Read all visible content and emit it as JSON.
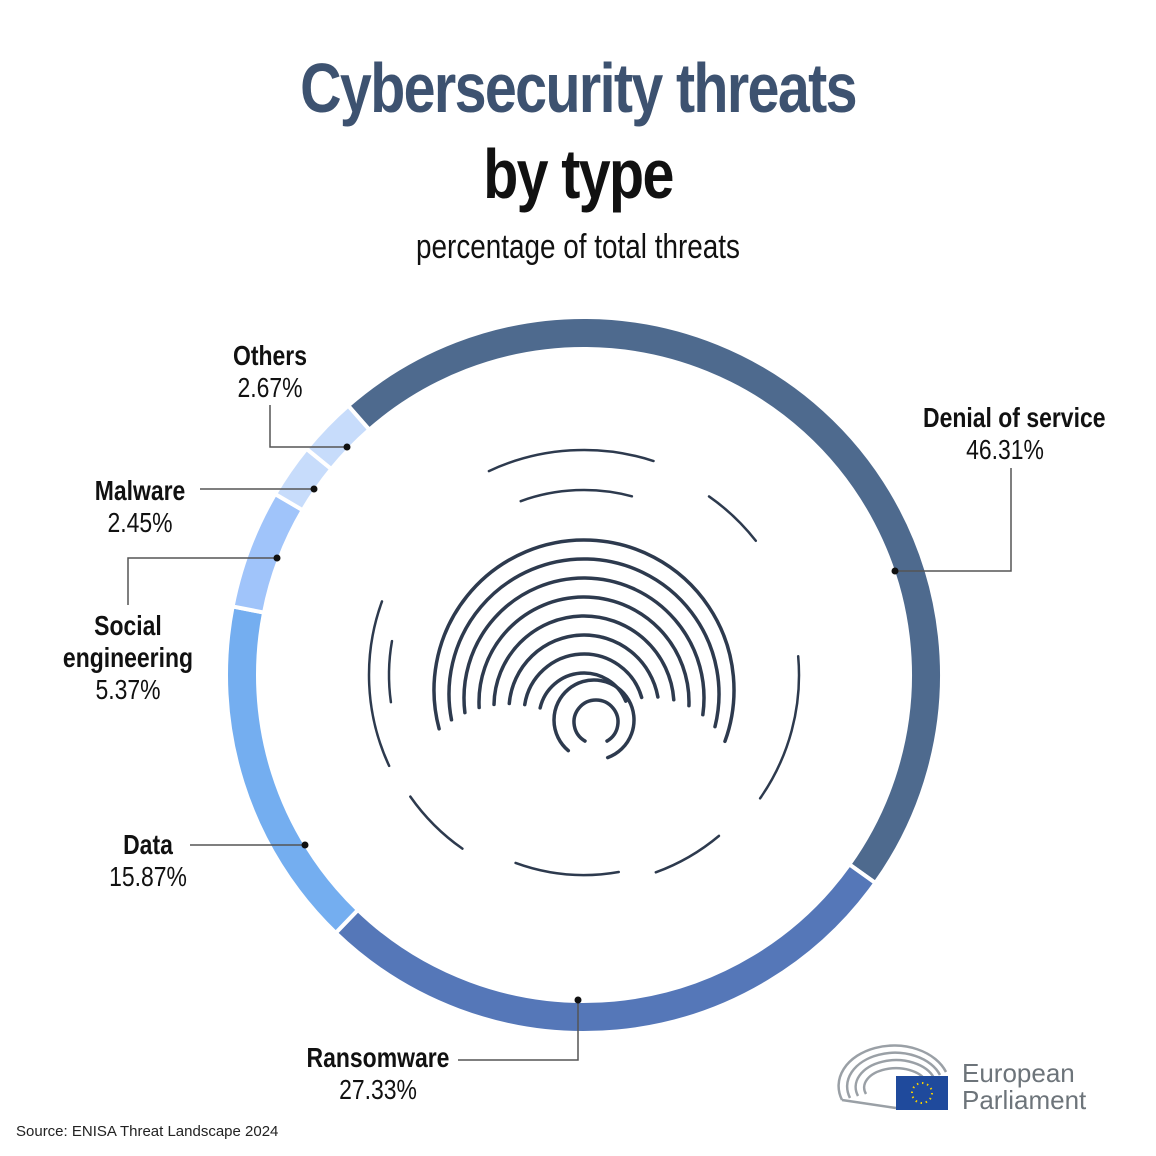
{
  "chart_data": {
    "type": "pie",
    "variant": "donut",
    "title": "Cybersecurity threats",
    "title_line2": "by type",
    "subtitle": "percentage of total threats",
    "slices": [
      {
        "label": "Denial of service",
        "value": 46.31,
        "display": "46.31%",
        "color": "#4e6a8e"
      },
      {
        "label": "Ransomware",
        "value": 27.33,
        "display": "27.33%",
        "color": "#5577b8"
      },
      {
        "label": "Data",
        "value": 15.87,
        "display": "15.87%",
        "color": "#74aef0"
      },
      {
        "label": "Social engineering",
        "value": 5.37,
        "display": "5.37%",
        "color": "#a0c4fa"
      },
      {
        "label": "Malware",
        "value": 2.45,
        "display": "2.45%",
        "color": "#c7dcfb"
      },
      {
        "label": "Others",
        "value": 2.67,
        "display": "2.67%",
        "color": "#c7dcfb"
      }
    ],
    "center_icon": "fingerprint-icon"
  },
  "source": "Source: ENISA Threat Landscape 2024",
  "logo": {
    "line1": "European",
    "line2": "Parliament",
    "icon": "parliament-hemicycle-eu-flag-icon"
  }
}
